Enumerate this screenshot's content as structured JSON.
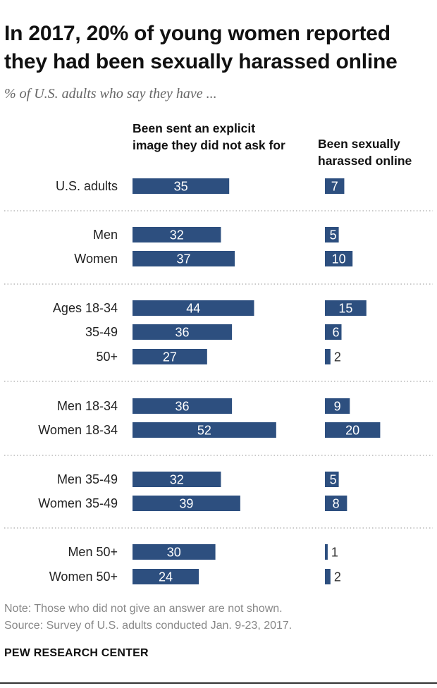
{
  "title": "In 2017, 20% of young women reported they had been sexually harassed online",
  "subtitle": "% of U.S. adults who say they have ...",
  "note": "Note: Those who did not give an answer are not shown.",
  "source": "Source: Survey of U.S. adults conducted Jan. 9-23, 2017.",
  "brand": "PEW RESEARCH CENTER",
  "colors": {
    "bar": "#2d4f7f",
    "label_inside": "#ffffff",
    "label_outside": "#333333",
    "divider": "#aaaaaa"
  },
  "chart_data": {
    "type": "bar",
    "orientation": "horizontal",
    "categories": [
      "U.S. adults",
      "Men",
      "Women",
      "Ages 18-34",
      "35-49",
      "50+",
      "Men 18-34",
      "Women 18-34",
      "Men 35-49",
      "Women 35-49",
      "Men 50+",
      "Women 50+"
    ],
    "groups": [
      [
        0
      ],
      [
        1,
        2
      ],
      [
        3,
        4,
        5
      ],
      [
        6,
        7
      ],
      [
        8,
        9
      ],
      [
        10,
        11
      ]
    ],
    "series": [
      {
        "name": "Been sent an explicit image they did not ask for",
        "values": [
          35,
          32,
          37,
          44,
          36,
          27,
          36,
          52,
          32,
          39,
          30,
          24
        ]
      },
      {
        "name": "Been sexually harassed online",
        "values": [
          7,
          5,
          10,
          15,
          6,
          2,
          9,
          20,
          5,
          8,
          1,
          2
        ]
      }
    ],
    "data_labels": true,
    "grid": false,
    "legend": "none"
  }
}
